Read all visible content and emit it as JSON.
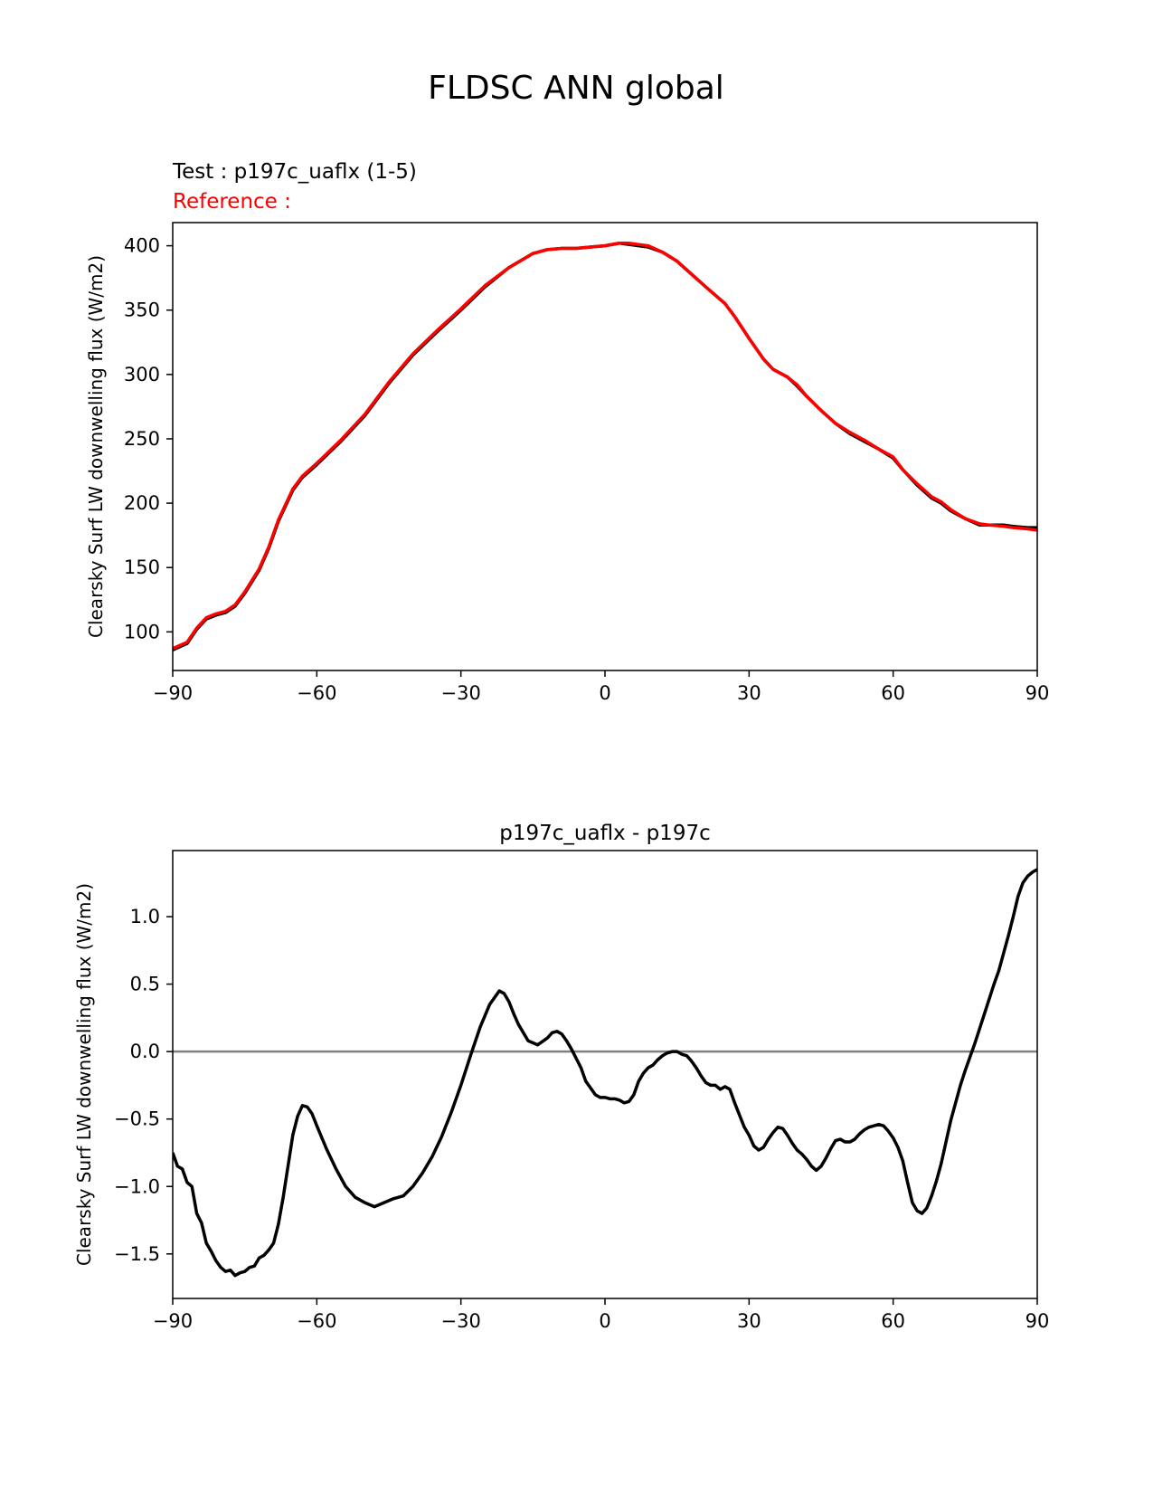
{
  "figure": {
    "title": "FLDSC ANN global",
    "test_label": "Test : p197c_uaflx (1-5)",
    "reference_label": "Reference :"
  },
  "colors": {
    "test": "#000000",
    "reference": "#ff0000",
    "zero_line": "#808080"
  },
  "chart_data": [
    {
      "type": "line",
      "title": "",
      "xlabel": "",
      "ylabel": "Clearsky Surf LW downwelling flux (W/m2)",
      "xlim": [
        -90,
        90
      ],
      "ylim": [
        70,
        418
      ],
      "xticks": [
        -90,
        -60,
        -30,
        0,
        30,
        60,
        90
      ],
      "xtick_labels": [
        "−90",
        "−60",
        "−30",
        "0",
        "30",
        "60",
        "90"
      ],
      "yticks": [
        100,
        150,
        200,
        250,
        300,
        350,
        400
      ],
      "ytick_labels": [
        "100",
        "150",
        "200",
        "250",
        "300",
        "350",
        "400"
      ],
      "x": [
        -90,
        -87,
        -85,
        -83,
        -81,
        -79,
        -77,
        -75,
        -72,
        -70,
        -68,
        -65,
        -63,
        -60,
        -55,
        -50,
        -45,
        -40,
        -35,
        -30,
        -25,
        -20,
        -15,
        -12,
        -9,
        -6,
        -3,
        0,
        3,
        5,
        7,
        9,
        12,
        15,
        18,
        21,
        25,
        27,
        30,
        33,
        35,
        38,
        40,
        42,
        45,
        48,
        51,
        54,
        57,
        60,
        62,
        65,
        68,
        70,
        72,
        75,
        78,
        80,
        83,
        85,
        88,
        90
      ],
      "series": [
        {
          "name": "test",
          "values": [
            86,
            91,
            102,
            110,
            113,
            115,
            120,
            130,
            148,
            165,
            186,
            210,
            220,
            230,
            248,
            268,
            293,
            315,
            333,
            350,
            368,
            383,
            394,
            397,
            398,
            398,
            399,
            400,
            402,
            401,
            400,
            399,
            395,
            388,
            378,
            368,
            355,
            345,
            328,
            312,
            304,
            298,
            291,
            283,
            272,
            262,
            254,
            248,
            242,
            235,
            226,
            214,
            204,
            200,
            194,
            188,
            183,
            183,
            183,
            182,
            181,
            181
          ]
        },
        {
          "name": "reference",
          "values": [
            87,
            92,
            103,
            111,
            114,
            116,
            121,
            131,
            149,
            166,
            187,
            211,
            221,
            231,
            249,
            269,
            294,
            316,
            334,
            351,
            369,
            383,
            394,
            397,
            398,
            398,
            399,
            400,
            402,
            402,
            401,
            400,
            395,
            388,
            378,
            368,
            355,
            345,
            328,
            312,
            304,
            298,
            292,
            283,
            272,
            262,
            255,
            249,
            242,
            236,
            226,
            215,
            205,
            201,
            195,
            188,
            184,
            183,
            182,
            181,
            180,
            179
          ]
        }
      ]
    },
    {
      "type": "line",
      "title": "p197c_uaflx - p197c",
      "xlabel": "",
      "ylabel": "Clearsky Surf LW downwelling flux (W/m2)",
      "xlim": [
        -90,
        90
      ],
      "ylim": [
        -1.83,
        1.49
      ],
      "xticks": [
        -90,
        -60,
        -30,
        0,
        30,
        60,
        90
      ],
      "xtick_labels": [
        "−90",
        "−60",
        "−30",
        "0",
        "30",
        "60",
        "90"
      ],
      "yticks": [
        -1.5,
        -1.0,
        -0.5,
        0.0,
        0.5,
        1.0
      ],
      "ytick_labels": [
        "−1.5",
        "−1.0",
        "−0.5",
        "0.0",
        "0.5",
        "1.0"
      ],
      "zero_line": 0.0,
      "x": [
        -90,
        -89,
        -88,
        -87,
        -86,
        -85,
        -84,
        -83,
        -82,
        -81,
        -80,
        -79,
        -78,
        -77,
        -76,
        -75,
        -74,
        -73,
        -72,
        -71,
        -70,
        -69,
        -68,
        -67,
        -66,
        -65,
        -64,
        -63,
        -62,
        -61,
        -60,
        -58,
        -56,
        -54,
        -52,
        -50,
        -48,
        -46,
        -44,
        -42,
        -40,
        -38,
        -36,
        -34,
        -32,
        -30,
        -28,
        -26,
        -24,
        -22,
        -21,
        -20,
        -19,
        -18,
        -16,
        -14,
        -12,
        -11,
        -10,
        -9,
        -8,
        -7,
        -6,
        -5,
        -4,
        -3,
        -2,
        -1,
        0,
        1,
        2,
        3,
        4,
        5,
        6,
        7,
        8,
        9,
        10,
        11,
        12,
        13,
        14,
        15,
        16,
        17,
        18,
        19,
        20,
        21,
        22,
        23,
        24,
        25,
        26,
        27,
        28,
        29,
        30,
        31,
        32,
        33,
        34,
        35,
        36,
        37,
        38,
        39,
        40,
        41,
        42,
        43,
        44,
        45,
        46,
        47,
        48,
        49,
        50,
        51,
        52,
        53,
        54,
        55,
        56,
        57,
        58,
        59,
        60,
        61,
        62,
        63,
        64,
        65,
        66,
        67,
        68,
        69,
        70,
        71,
        72,
        73,
        74,
        75,
        76,
        77,
        78,
        79,
        80,
        81,
        82,
        83,
        84,
        85,
        86,
        87,
        88,
        89,
        90
      ],
      "series": [
        {
          "name": "p197c_uaflx - p197c",
          "values": [
            -0.75,
            -0.85,
            -0.87,
            -0.97,
            -1.0,
            -1.2,
            -1.27,
            -1.42,
            -1.48,
            -1.55,
            -1.6,
            -1.63,
            -1.62,
            -1.66,
            -1.64,
            -1.63,
            -1.6,
            -1.59,
            -1.53,
            -1.51,
            -1.47,
            -1.42,
            -1.28,
            -1.08,
            -0.85,
            -0.62,
            -0.48,
            -0.4,
            -0.41,
            -0.46,
            -0.55,
            -0.72,
            -0.87,
            -1.0,
            -1.08,
            -1.12,
            -1.15,
            -1.12,
            -1.09,
            -1.07,
            -1.0,
            -0.9,
            -0.78,
            -0.63,
            -0.45,
            -0.25,
            -0.03,
            0.18,
            0.35,
            0.45,
            0.43,
            0.37,
            0.28,
            0.2,
            0.08,
            0.05,
            0.1,
            0.14,
            0.15,
            0.13,
            0.08,
            0.02,
            -0.05,
            -0.12,
            -0.22,
            -0.27,
            -0.32,
            -0.34,
            -0.34,
            -0.35,
            -0.35,
            -0.36,
            -0.38,
            -0.37,
            -0.32,
            -0.22,
            -0.16,
            -0.12,
            -0.1,
            -0.06,
            -0.03,
            -0.01,
            0.0,
            0.0,
            -0.02,
            -0.03,
            -0.07,
            -0.12,
            -0.18,
            -0.23,
            -0.25,
            -0.25,
            -0.28,
            -0.26,
            -0.28,
            -0.38,
            -0.47,
            -0.56,
            -0.62,
            -0.7,
            -0.73,
            -0.71,
            -0.65,
            -0.6,
            -0.56,
            -0.57,
            -0.62,
            -0.68,
            -0.73,
            -0.76,
            -0.8,
            -0.85,
            -0.88,
            -0.85,
            -0.79,
            -0.72,
            -0.66,
            -0.65,
            -0.67,
            -0.67,
            -0.65,
            -0.61,
            -0.58,
            -0.56,
            -0.55,
            -0.54,
            -0.55,
            -0.59,
            -0.64,
            -0.71,
            -0.81,
            -0.97,
            -1.12,
            -1.18,
            -1.2,
            -1.16,
            -1.07,
            -0.96,
            -0.83,
            -0.67,
            -0.51,
            -0.38,
            -0.25,
            -0.14,
            -0.04,
            0.06,
            0.17,
            0.28,
            0.39,
            0.5,
            0.6,
            0.73,
            0.86,
            1.0,
            1.15,
            1.25,
            1.3,
            1.33,
            1.35
          ]
        }
      ]
    }
  ]
}
